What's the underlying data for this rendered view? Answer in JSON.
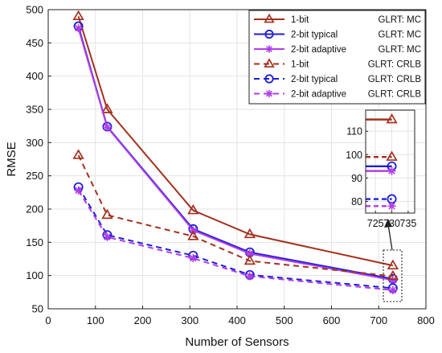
{
  "chart_data": {
    "type": "line",
    "xlabel": "Number of Sensors",
    "ylabel": "RMSE",
    "xlim": [
      0,
      800
    ],
    "ylim": [
      50,
      500
    ],
    "xticks": [
      0,
      100,
      200,
      300,
      400,
      500,
      600,
      700,
      800
    ],
    "yticks": [
      50,
      100,
      150,
      200,
      250,
      300,
      350,
      400,
      450,
      500
    ],
    "grid": true,
    "legend_position": "top-right",
    "x": [
      64,
      125,
      307,
      427,
      730
    ],
    "series": [
      {
        "name": "1-bit",
        "method": "GLRT: MC",
        "color": "#a3311e",
        "style": "solid",
        "marker": "triangle",
        "values": [
          490,
          350,
          198,
          162,
          115
        ]
      },
      {
        "name": "2-bit typical",
        "method": "GLRT: MC",
        "color": "#1f1fd6",
        "style": "solid",
        "marker": "circle",
        "values": [
          475,
          324,
          170,
          135,
          95
        ]
      },
      {
        "name": "2-bit adaptive",
        "method": "GLRT: MC",
        "color": "#b23ee6",
        "style": "solid",
        "marker": "asterisk",
        "values": [
          472,
          323,
          168,
          133,
          93
        ]
      },
      {
        "name": "1-bit",
        "method": "GLRT: CRLB",
        "color": "#a3311e",
        "style": "dashed",
        "marker": "triangle",
        "values": [
          281,
          191,
          159,
          122,
          99
        ]
      },
      {
        "name": "2-bit typical",
        "method": "GLRT: CRLB",
        "color": "#1f1fd6",
        "style": "dashed",
        "marker": "circle",
        "values": [
          233,
          161,
          130,
          101,
          81
        ]
      },
      {
        "name": "2-bit adaptive",
        "method": "GLRT: CRLB",
        "color": "#b23ee6",
        "style": "dashed",
        "marker": "asterisk",
        "values": [
          228,
          158,
          126,
          99,
          78
        ]
      }
    ],
    "inset": {
      "xlim": [
        722,
        737
      ],
      "ylim": [
        75,
        119
      ],
      "xticks": [
        725,
        730,
        735
      ],
      "yticks": [
        80,
        90,
        100,
        110
      ]
    }
  }
}
